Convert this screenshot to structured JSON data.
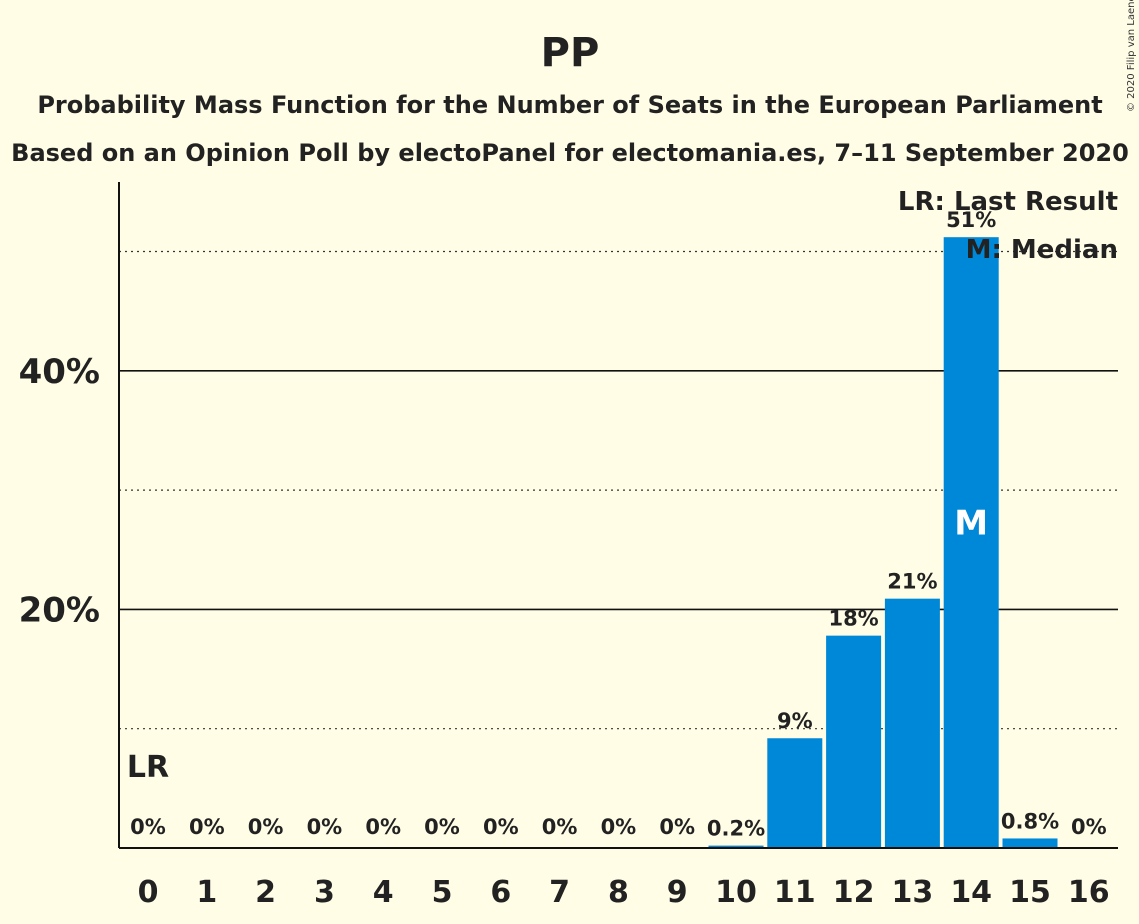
{
  "chart_data": {
    "type": "bar",
    "title": "PP",
    "subtitle": "Probability Mass Function for the Number of Seats in the European Parliament",
    "subtitle2": "Based on an Opinion Poll by electoPanel for electomania.es, 7–11 September 2020",
    "copyright": "© 2020 Filip van Laenen",
    "categories": [
      "0",
      "1",
      "2",
      "3",
      "4",
      "5",
      "6",
      "7",
      "8",
      "9",
      "10",
      "11",
      "12",
      "13",
      "14",
      "15",
      "16"
    ],
    "values": [
      0,
      0,
      0,
      0,
      0,
      0,
      0,
      0,
      0,
      0,
      0.2,
      9.2,
      17.8,
      20.9,
      51.2,
      0.8,
      0
    ],
    "value_labels": [
      "0%",
      "0%",
      "0%",
      "0%",
      "0%",
      "0%",
      "0%",
      "0%",
      "0%",
      "0%",
      "0.2%",
      "9%",
      "18%",
      "21%",
      "51%",
      "0.8%",
      "0%"
    ],
    "ylim": [
      0,
      56
    ],
    "yticks": [
      {
        "value": 20,
        "label": "20%"
      },
      {
        "value": 40,
        "label": "40%"
      }
    ],
    "minor_gridlines": [
      10,
      30,
      50
    ],
    "bar_color": "#0088D8",
    "last_result": {
      "seats": 0,
      "marker": "LR"
    },
    "median": {
      "seats": 14,
      "marker": "M"
    },
    "legend": [
      "LR: Last Result",
      "M: Median"
    ],
    "legend_position": "top-right"
  }
}
